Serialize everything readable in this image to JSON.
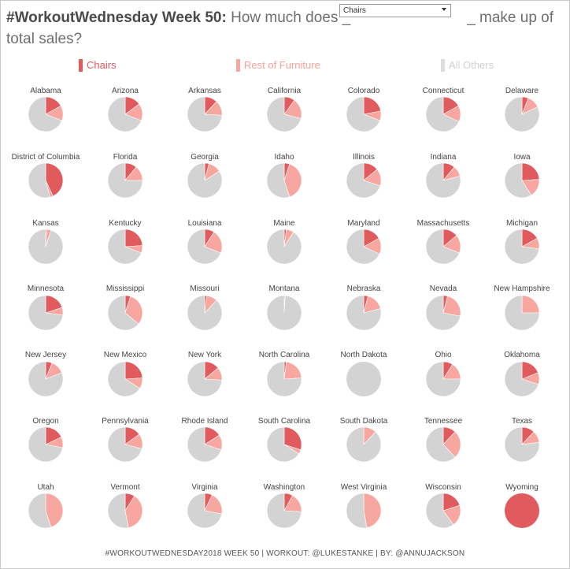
{
  "header": {
    "title_bold": "#WorkoutWednesday Week 50:",
    "title_text_a": "How much does _",
    "title_text_b": "_ make up of total sales?"
  },
  "dropdown": {
    "selected": "Chairs"
  },
  "legend": [
    {
      "label": "Chairs",
      "color": "#e05a5e"
    },
    {
      "label": "Rest of Furniture",
      "color": "#f7a6a0"
    },
    {
      "label": "All Others",
      "color": "#d3d3d3"
    }
  ],
  "footer": "#WORKOUTWEDNESDAY2018 WEEK 50 | WORKOUT: @LUKESTANKE | BY: @ANNUJACKSON",
  "chart_data": {
    "type": "pie",
    "series_names": [
      "Chairs",
      "Rest of Furniture",
      "All Others"
    ],
    "colors": [
      "#e05a5e",
      "#f7a6a0",
      "#d3d3d3"
    ],
    "units": "share of total sales",
    "states": [
      {
        "name": "Alabama",
        "values": [
          0.17,
          0.14,
          0.69
        ]
      },
      {
        "name": "Arizona",
        "values": [
          0.15,
          0.16,
          0.69
        ]
      },
      {
        "name": "Arkansas",
        "values": [
          0.12,
          0.14,
          0.74
        ]
      },
      {
        "name": "California",
        "values": [
          0.1,
          0.19,
          0.71
        ]
      },
      {
        "name": "Colorado",
        "values": [
          0.22,
          0.09,
          0.69
        ]
      },
      {
        "name": "Connecticut",
        "values": [
          0.17,
          0.15,
          0.68
        ]
      },
      {
        "name": "Delaware",
        "values": [
          0.06,
          0.12,
          0.82
        ]
      },
      {
        "name": "District of Columbia",
        "values": [
          0.43,
          0.03,
          0.54
        ]
      },
      {
        "name": "Florida",
        "values": [
          0.11,
          0.14,
          0.75
        ]
      },
      {
        "name": "Georgia",
        "values": [
          0.04,
          0.12,
          0.84
        ]
      },
      {
        "name": "Idaho",
        "values": [
          0.05,
          0.4,
          0.55
        ]
      },
      {
        "name": "Illinois",
        "values": [
          0.14,
          0.16,
          0.7
        ]
      },
      {
        "name": "Indiana",
        "values": [
          0.11,
          0.1,
          0.79
        ]
      },
      {
        "name": "Iowa",
        "values": [
          0.24,
          0.17,
          0.59
        ]
      },
      {
        "name": "Kansas",
        "values": [
          0.01,
          0.04,
          0.95
        ]
      },
      {
        "name": "Kentucky",
        "values": [
          0.24,
          0.07,
          0.69
        ]
      },
      {
        "name": "Louisiana",
        "values": [
          0.09,
          0.22,
          0.69
        ]
      },
      {
        "name": "Maine",
        "values": [
          0.02,
          0.07,
          0.91
        ]
      },
      {
        "name": "Maryland",
        "values": [
          0.17,
          0.15,
          0.68
        ]
      },
      {
        "name": "Massachusetts",
        "values": [
          0.14,
          0.17,
          0.69
        ]
      },
      {
        "name": "Michigan",
        "values": [
          0.17,
          0.1,
          0.73
        ]
      },
      {
        "name": "Minnesota",
        "values": [
          0.2,
          0.07,
          0.73
        ]
      },
      {
        "name": "Mississippi",
        "values": [
          0.05,
          0.31,
          0.64
        ]
      },
      {
        "name": "Missouri",
        "values": [
          0.02,
          0.1,
          0.88
        ]
      },
      {
        "name": "Montana",
        "values": [
          0.0,
          0.01,
          0.99
        ]
      },
      {
        "name": "Nebraska",
        "values": [
          0.04,
          0.17,
          0.79
        ]
      },
      {
        "name": "Nevada",
        "values": [
          0.04,
          0.24,
          0.72
        ]
      },
      {
        "name": "New Hampshire",
        "values": [
          0.0,
          0.25,
          0.75
        ]
      },
      {
        "name": "New Jersey",
        "values": [
          0.06,
          0.13,
          0.81
        ]
      },
      {
        "name": "New Mexico",
        "values": [
          0.24,
          0.1,
          0.66
        ]
      },
      {
        "name": "New York",
        "values": [
          0.14,
          0.12,
          0.74
        ]
      },
      {
        "name": "North Carolina",
        "values": [
          0.02,
          0.22,
          0.76
        ]
      },
      {
        "name": "North Dakota",
        "values": [
          0.0,
          0.0,
          1.0
        ]
      },
      {
        "name": "Ohio",
        "values": [
          0.09,
          0.16,
          0.75
        ]
      },
      {
        "name": "Oklahoma",
        "values": [
          0.19,
          0.11,
          0.7
        ]
      },
      {
        "name": "Oregon",
        "values": [
          0.18,
          0.1,
          0.72
        ]
      },
      {
        "name": "Pennsylvania",
        "values": [
          0.15,
          0.14,
          0.71
        ]
      },
      {
        "name": "Rhode Island",
        "values": [
          0.16,
          0.14,
          0.7
        ]
      },
      {
        "name": "South Carolina",
        "values": [
          0.3,
          0.04,
          0.66
        ]
      },
      {
        "name": "South Dakota",
        "values": [
          0.0,
          0.12,
          0.88
        ]
      },
      {
        "name": "Tennessee",
        "values": [
          0.12,
          0.26,
          0.62
        ]
      },
      {
        "name": "Texas",
        "values": [
          0.12,
          0.11,
          0.77
        ]
      },
      {
        "name": "Utah",
        "values": [
          0.0,
          0.45,
          0.55
        ]
      },
      {
        "name": "Vermont",
        "values": [
          0.09,
          0.38,
          0.53
        ]
      },
      {
        "name": "Virginia",
        "values": [
          0.07,
          0.21,
          0.72
        ]
      },
      {
        "name": "Washington",
        "values": [
          0.08,
          0.18,
          0.74
        ]
      },
      {
        "name": "West Virginia",
        "values": [
          0.0,
          0.47,
          0.53
        ]
      },
      {
        "name": "Wisconsin",
        "values": [
          0.2,
          0.2,
          0.6
        ]
      },
      {
        "name": "Wyoming",
        "values": [
          1.0,
          0.0,
          0.0
        ]
      }
    ]
  }
}
